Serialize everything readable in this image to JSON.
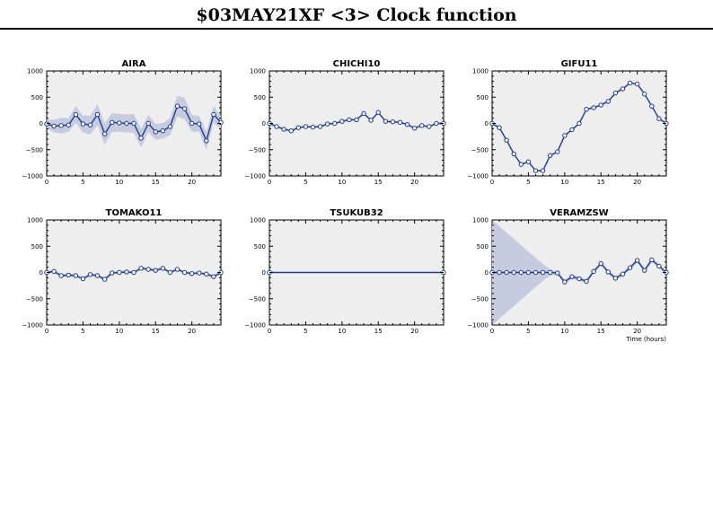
{
  "header": {
    "title": "$03MAY21XF <3>  Clock function"
  },
  "colors": {
    "line": "#1f3b8f",
    "band": "#c7cbdf",
    "plot_background": "#eeeeee"
  },
  "chart_data": [
    {
      "type": "line",
      "title": "AIRA",
      "xlim": [
        0,
        24
      ],
      "ylim": [
        -1000,
        1000
      ],
      "xticks": [
        0,
        5,
        10,
        15,
        20
      ],
      "yticks": [
        -1000,
        -500,
        0,
        500,
        1000
      ],
      "xlabel": "",
      "x": [
        0,
        1,
        2,
        3,
        4,
        5,
        6,
        7,
        8,
        9,
        10,
        11,
        12,
        13,
        14,
        15,
        16,
        17,
        18,
        19,
        20,
        21,
        22,
        23,
        24
      ],
      "y": [
        -10,
        -50,
        -40,
        -30,
        170,
        -10,
        -30,
        170,
        -200,
        20,
        10,
        0,
        0,
        -280,
        0,
        -160,
        -140,
        -60,
        330,
        280,
        0,
        -10,
        -330,
        170,
        20
      ],
      "band": [
        80,
        120,
        150,
        130,
        160,
        160,
        180,
        200,
        200,
        180,
        170,
        170,
        180,
        180,
        160,
        150,
        150,
        160,
        200,
        200,
        160,
        150,
        170,
        160,
        120
      ]
    },
    {
      "type": "line",
      "title": "CHICHI10",
      "xlim": [
        0,
        24
      ],
      "ylim": [
        -1000,
        1000
      ],
      "xticks": [
        0,
        5,
        10,
        15,
        20
      ],
      "yticks": [
        -1000,
        -500,
        0,
        500,
        1000
      ],
      "xlabel": "",
      "x": [
        0,
        1,
        2,
        3,
        4,
        5,
        6,
        7,
        8,
        9,
        10,
        11,
        12,
        13,
        14,
        15,
        16,
        17,
        18,
        19,
        20,
        21,
        22,
        23,
        24
      ],
      "y": [
        0,
        -60,
        -110,
        -140,
        -80,
        -60,
        -70,
        -60,
        -10,
        0,
        40,
        70,
        70,
        190,
        60,
        210,
        40,
        30,
        20,
        -20,
        -90,
        -40,
        -60,
        0,
        0
      ],
      "band": [
        20,
        20,
        20,
        20,
        20,
        20,
        20,
        20,
        20,
        20,
        20,
        20,
        20,
        20,
        20,
        20,
        20,
        20,
        20,
        20,
        20,
        20,
        20,
        20,
        20
      ]
    },
    {
      "type": "line",
      "title": "GIFU11",
      "xlim": [
        0,
        24
      ],
      "ylim": [
        -1000,
        1000
      ],
      "xticks": [
        0,
        5,
        10,
        15,
        20
      ],
      "yticks": [
        -1000,
        -500,
        0,
        500,
        1000
      ],
      "xlabel": "",
      "x": [
        0,
        1,
        2,
        3,
        4,
        5,
        6,
        7,
        8,
        9,
        10,
        11,
        12,
        13,
        14,
        15,
        16,
        17,
        18,
        19,
        20,
        21,
        22,
        23,
        24
      ],
      "y": [
        0,
        -80,
        -320,
        -580,
        -780,
        -730,
        -900,
        -900,
        -610,
        -540,
        -230,
        -120,
        0,
        270,
        300,
        350,
        420,
        580,
        660,
        770,
        750,
        560,
        330,
        90,
        0
      ],
      "band": [
        20,
        20,
        20,
        20,
        20,
        20,
        20,
        20,
        20,
        20,
        20,
        20,
        20,
        20,
        20,
        20,
        20,
        20,
        20,
        20,
        20,
        20,
        20,
        20,
        20
      ]
    },
    {
      "type": "line",
      "title": "TOMAKO11",
      "xlim": [
        0,
        24
      ],
      "ylim": [
        -1000,
        1000
      ],
      "xticks": [
        0,
        5,
        10,
        15,
        20
      ],
      "yticks": [
        -1000,
        -500,
        0,
        500,
        1000
      ],
      "xlabel": "",
      "x": [
        0,
        1,
        2,
        3,
        4,
        5,
        6,
        7,
        8,
        9,
        10,
        11,
        12,
        13,
        14,
        15,
        16,
        17,
        18,
        19,
        20,
        21,
        22,
        23,
        24
      ],
      "y": [
        0,
        20,
        -60,
        -50,
        -60,
        -120,
        -40,
        -60,
        -130,
        -10,
        0,
        10,
        0,
        80,
        60,
        40,
        80,
        0,
        60,
        0,
        -20,
        -10,
        -30,
        -80,
        0
      ],
      "band": [
        30,
        30,
        30,
        30,
        30,
        30,
        30,
        30,
        30,
        30,
        30,
        30,
        30,
        30,
        30,
        30,
        30,
        30,
        30,
        30,
        30,
        30,
        30,
        30,
        30
      ]
    },
    {
      "type": "line",
      "title": "TSUKUB32",
      "xlim": [
        0,
        24
      ],
      "ylim": [
        -1000,
        1000
      ],
      "xticks": [
        0,
        5,
        10,
        15,
        20
      ],
      "yticks": [
        -1000,
        -500,
        0,
        500,
        1000
      ],
      "xlabel": "",
      "x": [
        0,
        24
      ],
      "y": [
        0,
        0
      ],
      "band": [
        0,
        0
      ]
    },
    {
      "type": "line",
      "title": "VERAMZSW",
      "xlim": [
        0,
        24
      ],
      "ylim": [
        -1000,
        1000
      ],
      "xticks": [
        0,
        5,
        10,
        15,
        20
      ],
      "yticks": [
        -1000,
        -500,
        0,
        500,
        1000
      ],
      "xlabel": "Time (hours)",
      "x": [
        0,
        1,
        2,
        3,
        4,
        5,
        6,
        7,
        8,
        9,
        10,
        11,
        12,
        13,
        14,
        15,
        16,
        17,
        18,
        19,
        20,
        21,
        22,
        23,
        24
      ],
      "y": [
        0,
        0,
        0,
        0,
        0,
        0,
        0,
        0,
        0,
        -10,
        -180,
        -80,
        -120,
        -170,
        20,
        170,
        10,
        -110,
        -30,
        90,
        230,
        40,
        240,
        120,
        0
      ],
      "band": [
        1000,
        880,
        760,
        640,
        520,
        400,
        280,
        160,
        60,
        40,
        40,
        40,
        40,
        40,
        40,
        40,
        40,
        40,
        40,
        40,
        40,
        40,
        40,
        40,
        40
      ]
    }
  ]
}
